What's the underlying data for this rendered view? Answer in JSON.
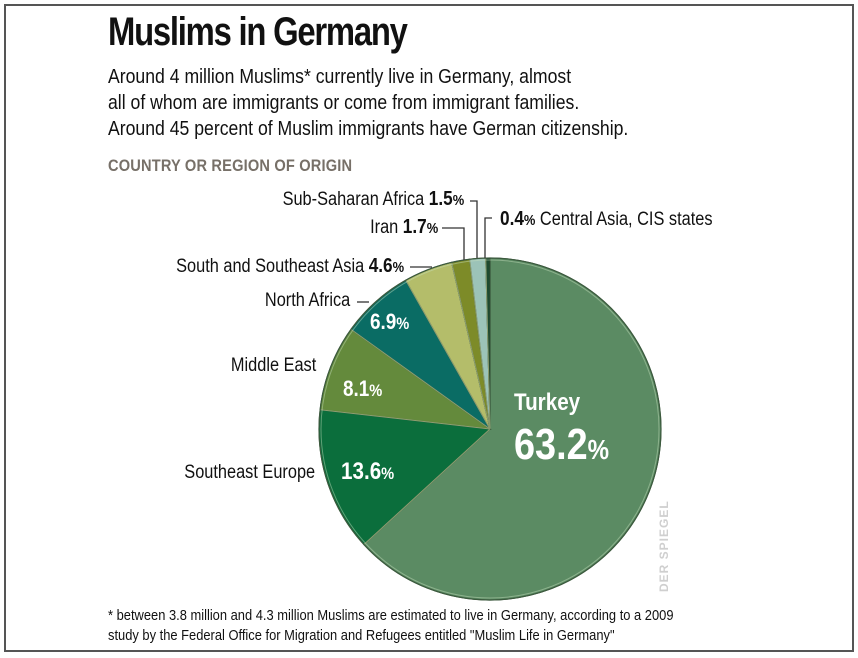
{
  "header": {
    "title": "Muslims in Germany",
    "subtitle_lines": [
      "Around 4 million Muslims* currently live in Germany, almost",
      "all of whom are immigrants or come from immigrant families.",
      "Around 45 percent of Muslim immigrants have German citizenship."
    ],
    "section_label": "COUNTRY OR REGION OF ORIGIN"
  },
  "labels": {
    "turkey": {
      "name": "Turkey",
      "value": "63.2",
      "unit": "%"
    },
    "southeast_europe": {
      "name": "Southeast Europe",
      "value": "13.6",
      "unit": "%"
    },
    "middle_east": {
      "name": "Middle East",
      "value": "8.1",
      "unit": "%"
    },
    "north_africa": {
      "name": "North Africa",
      "value": "6.9",
      "unit": "%"
    },
    "south_se_asia": {
      "name": "South and Southeast Asia",
      "value": "4.6",
      "unit": "%"
    },
    "iran": {
      "name": "Iran",
      "value": "1.7",
      "unit": "%"
    },
    "sub_saharan": {
      "name": "Sub-Saharan Africa",
      "value": "1.5",
      "unit": "%"
    },
    "central_asia": {
      "name": "Central Asia, CIS states",
      "value": "0.4",
      "unit": "%"
    }
  },
  "footnote_lines": [
    "* between 3.8 million and 4.3 million Muslims are estimated to live in Germany, according to a 2009",
    "study by the Federal Office for Migration and Refugees entitled \"Muslim Life in Germany\""
  ],
  "credit": "DER SPIEGEL",
  "chart_data": {
    "type": "pie",
    "title": "Muslims in Germany",
    "subtitle": "Country or region of origin",
    "categories": [
      "Turkey",
      "Southeast Europe",
      "Middle East",
      "North Africa",
      "South and Southeast Asia",
      "Iran",
      "Sub-Saharan Africa",
      "Central Asia, CIS states"
    ],
    "values": [
      63.2,
      13.6,
      8.1,
      6.9,
      4.6,
      1.7,
      1.5,
      0.4
    ],
    "unit": "%",
    "colors": [
      "#5b8b63",
      "#0b6e3c",
      "#648a3c",
      "#0a6c64",
      "#b4bd6a",
      "#7d8b28",
      "#9cc3b8",
      "#1d4a30"
    ],
    "start_angle_deg": 0,
    "direction": "clockwise",
    "center": [
      490,
      429
    ],
    "radius": 171
  }
}
